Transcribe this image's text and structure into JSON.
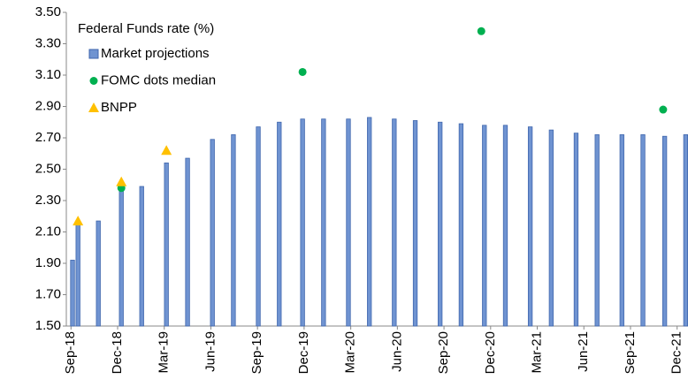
{
  "chart_data": {
    "type": "bar",
    "legend_title": "Federal Funds rate (%)",
    "legend": "upper-left",
    "grid": false,
    "ylim": [
      1.5,
      3.5
    ],
    "yticks": [
      {
        "value": 1.5,
        "label": "1.50"
      },
      {
        "value": 1.7,
        "label": "1.70"
      },
      {
        "value": 1.9,
        "label": "1.90"
      },
      {
        "value": 2.1,
        "label": "2.10"
      },
      {
        "value": 2.3,
        "label": "2.30"
      },
      {
        "value": 2.5,
        "label": "2.50"
      },
      {
        "value": 2.7,
        "label": "2.70"
      },
      {
        "value": 2.9,
        "label": "2.90"
      },
      {
        "value": 3.1,
        "label": "3.10"
      },
      {
        "value": 3.3,
        "label": "3.30"
      },
      {
        "value": 3.5,
        "label": "3.50"
      }
    ],
    "xlim": [
      -0.3,
      39.7
    ],
    "xticks": [
      {
        "value": 0,
        "label": "Sep-18"
      },
      {
        "value": 3,
        "label": "Dec-18"
      },
      {
        "value": 6,
        "label": "Mar-19"
      },
      {
        "value": 9,
        "label": "Jun-19"
      },
      {
        "value": 12,
        "label": "Sep-19"
      },
      {
        "value": 15,
        "label": "Dec-19"
      },
      {
        "value": 18,
        "label": "Mar-20"
      },
      {
        "value": 21,
        "label": "Jun-20"
      },
      {
        "value": 24,
        "label": "Sep-20"
      },
      {
        "value": 27,
        "label": "Dec-20"
      },
      {
        "value": 30,
        "label": "Mar-21"
      },
      {
        "value": 33,
        "label": "Jun-21"
      },
      {
        "value": 36,
        "label": "Sep-21"
      },
      {
        "value": 39,
        "label": "Dec-21"
      }
    ],
    "series": [
      {
        "name": "Market projections",
        "type": "bar",
        "marker": "square",
        "color": "#6f93d1",
        "edge": "#3f66ad",
        "x": [
          0.1,
          0.45,
          1.76,
          3.24,
          4.55,
          6.14,
          7.5,
          9.1,
          10.45,
          12.05,
          13.4,
          14.9,
          16.25,
          17.85,
          19.2,
          20.8,
          22.15,
          23.75,
          25.1,
          26.6,
          27.95,
          29.55,
          30.9,
          32.5,
          33.85,
          35.45,
          36.8,
          38.2,
          39.55
        ],
        "values": [
          1.92,
          2.15,
          2.17,
          2.38,
          2.39,
          2.54,
          2.57,
          2.69,
          2.72,
          2.77,
          2.8,
          2.82,
          2.82,
          2.82,
          2.83,
          2.82,
          2.81,
          2.8,
          2.79,
          2.78,
          2.78,
          2.77,
          2.75,
          2.73,
          2.72,
          2.72,
          2.72,
          2.71,
          2.72
        ]
      },
      {
        "name": "FOMC dots median",
        "type": "scatter",
        "marker": "circle",
        "color": "#00b050",
        "x": [
          3.24,
          14.9,
          26.4,
          38.1
        ],
        "values": [
          2.38,
          3.12,
          3.38,
          2.88
        ]
      },
      {
        "name": "BNPP",
        "type": "scatter",
        "marker": "triangle",
        "color": "#ffc000",
        "x": [
          0.45,
          3.24,
          6.14
        ],
        "values": [
          2.17,
          2.42,
          2.62
        ]
      }
    ]
  }
}
